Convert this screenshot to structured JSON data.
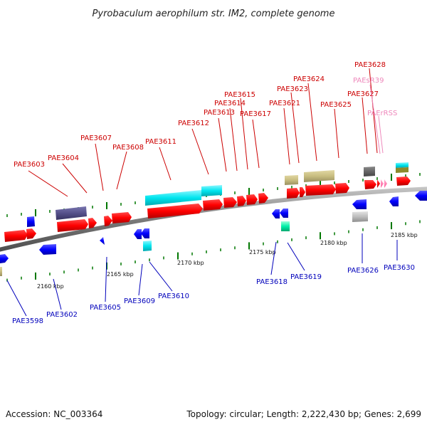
{
  "header": {
    "title": "Pyrobaculum aerophilum str. IM2, complete genome"
  },
  "footer": {
    "accession": "Accession: NC_003364",
    "summary": "Topology: circular; Length: 2,222,430 bp; Genes: 2,699"
  },
  "scale_labels": [
    "2160 kbp",
    "2165 kbp",
    "2170 kbp",
    "2175 kbp",
    "2180 kbp",
    "2185 kbp"
  ],
  "colors": {
    "forward_label": "#cc0000",
    "reverse_label": "#0000bb",
    "rna_label": "#ee88bb",
    "forward_gene": "#ff0000",
    "reverse_gene": "#0000ff",
    "cyan_feature": "#00e5ee",
    "olive_feature": "#c8bd80",
    "purple_feature": "#55508a",
    "backbone": "#888888"
  },
  "forward_labels": [
    "PAE3603",
    "PAE3604",
    "PAE3607",
    "PAE3608",
    "PAE3611",
    "PAE3612",
    "PAE3613",
    "PAE3614",
    "PAE3615",
    "PAE3617",
    "PAE3621",
    "PAE3623",
    "PAE3624",
    "PAE3625",
    "PAE3627",
    "PAE3628"
  ],
  "rna_labels": [
    "PAEsR39",
    "PAErRSS"
  ],
  "reverse_labels": [
    "PAE3598",
    "PAE3602",
    "PAE3605",
    "PAE3609",
    "PAE3610",
    "PAE3618",
    "PAE3619",
    "PAE3626",
    "PAE3630"
  ]
}
